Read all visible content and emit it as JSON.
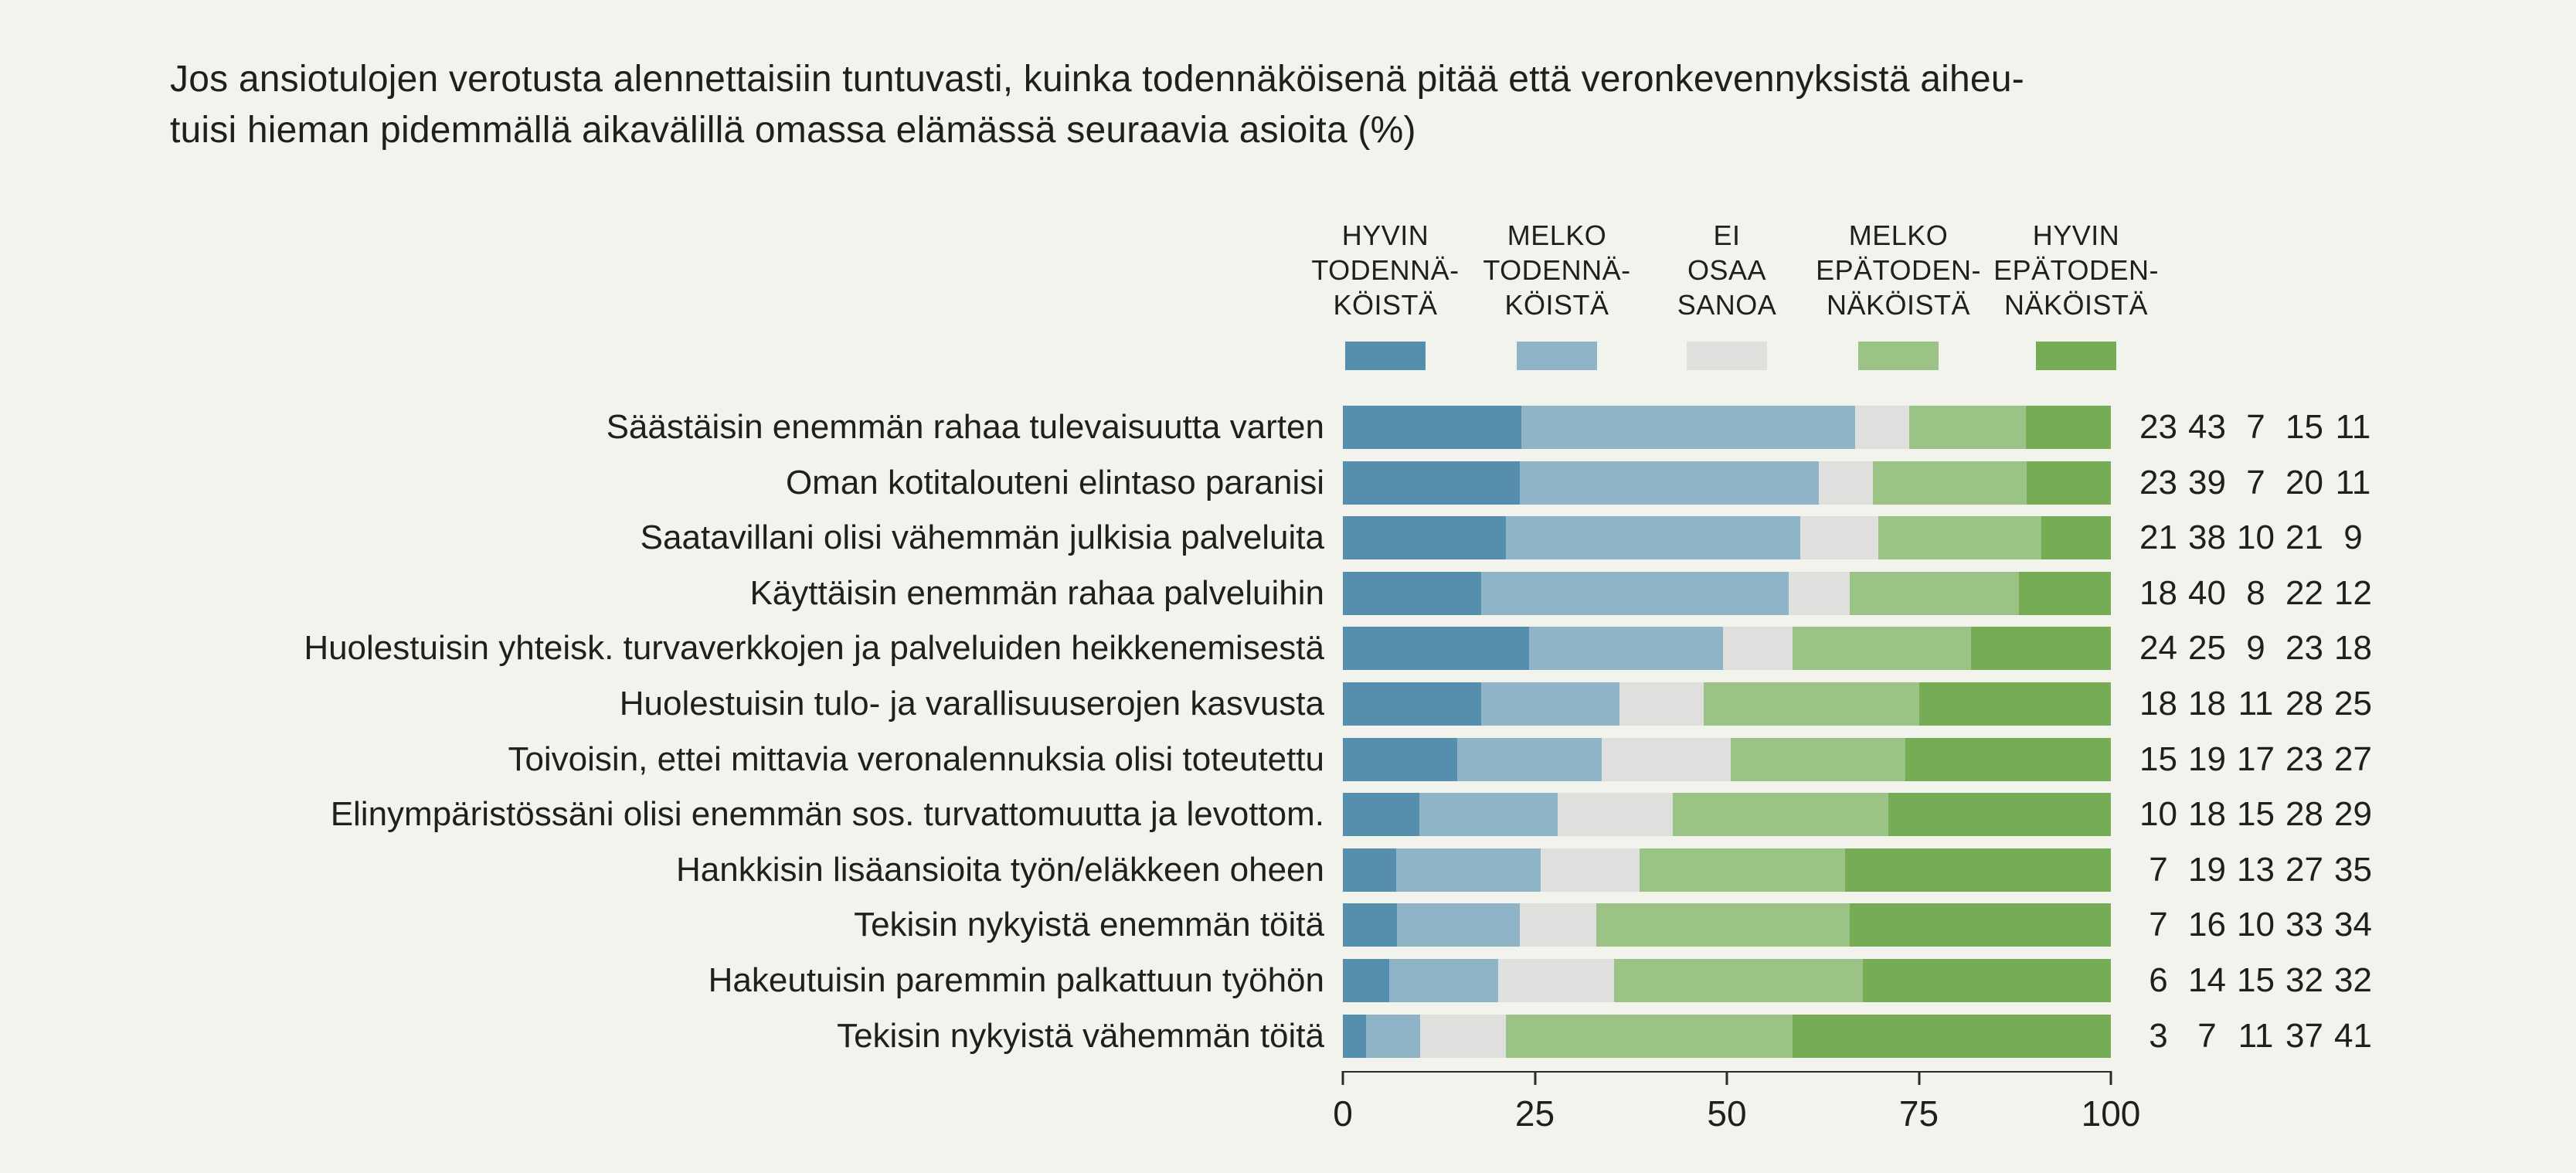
{
  "title": {
    "line1": "Jos ansiotulojen verotusta alennettaisiin tuntuvasti, kuinka todennäköisenä pitää että veronkevennyksistä aiheu-",
    "line2": "tuisi hieman pidemmällä aikavälillä omassa elämässä seuraavia asioita (%)"
  },
  "colors": {
    "background": "#F2F3EC",
    "text": "#1F1F1F",
    "axis": "#2B2B2B",
    "hyvin_todennakoista": "#568FAD",
    "melko_todennakoista": "#90B4C7",
    "ei_osaa_sanoa": "#DFE0DE",
    "melko_epatodennakoista": "#9CC386",
    "hyvin_epatodennakoista": "#76AC55"
  },
  "chart_data": {
    "type": "bar",
    "orientation": "horizontal",
    "stacked": true,
    "unit": "%",
    "title": "Jos ansiotulojen verotusta alennettaisiin tuntuvasti, kuinka todennäköisenä pitää että veronkevennyksistä aiheutuisi hieman pidemmällä aikavälillä omassa elämässä seuraavia asioita (%)",
    "xlim": [
      0,
      100
    ],
    "xticks": [
      "0",
      "25",
      "50",
      "75",
      "100"
    ],
    "grid": false,
    "legend_position": "top",
    "legend": [
      {
        "key": "hyvin-todennakoista",
        "lines": [
          "HYVIN",
          "TODENNÄ-",
          "KÖISTÄ"
        ],
        "color": "#568FAD"
      },
      {
        "key": "melko-todennakoista",
        "lines": [
          "MELKO",
          "TODENNÄ-",
          "KÖISTÄ"
        ],
        "color": "#90B4C7"
      },
      {
        "key": "ei-osaa-sanoa",
        "lines": [
          "EI",
          "OSAA",
          "SANOA"
        ],
        "color": "#DFE0DE"
      },
      {
        "key": "melko-epatodennakoista",
        "lines": [
          "MELKO",
          "EPÄTODEN-",
          "NÄKÖISTÄ"
        ],
        "color": "#9CC386"
      },
      {
        "key": "hyvin-epatodennakoista",
        "lines": [
          "HYVIN",
          "EPÄTODEN-",
          "NÄKÖISTÄ"
        ],
        "color": "#76AC55"
      }
    ],
    "categories": [
      "Säästäisin enemmän rahaa tulevaisuutta varten",
      "Oman kotitalouteni elintaso paranisi",
      "Saatavillani olisi vähemmän julkisia palveluita",
      "Käyttäisin enemmän rahaa palveluihin",
      "Huolestuisin yhteisk. turvaverkkojen ja palveluiden heikkenemisestä",
      "Huolestuisin tulo- ja varallisuuserojen kasvusta",
      "Toivoisin, ettei mittavia veronalennuksia olisi toteutettu",
      "Elinympäristössäni olisi enemmän sos. turvattomuutta ja levottom.",
      "Hankkisin lisäansioita työn/eläkkeen oheen",
      "Tekisin nykyistä enemmän töitä",
      "Hakeutuisin paremmin palkattuun työhön",
      "Tekisin nykyistä vähemmän töitä"
    ],
    "series": [
      {
        "key": "hyvin-todennakoista",
        "name": "HYVIN TODENNÄKÖISTÄ",
        "color": "#568FAD",
        "values": [
          23,
          23,
          21,
          18,
          24,
          18,
          15,
          10,
          7,
          7,
          6,
          3
        ]
      },
      {
        "key": "melko-todennakoista",
        "name": "MELKO TODENNÄKÖISTÄ",
        "color": "#90B4C7",
        "values": [
          43,
          39,
          38,
          40,
          25,
          18,
          19,
          18,
          19,
          16,
          14,
          7
        ]
      },
      {
        "key": "ei-osaa-sanoa",
        "name": "EI OSAA SANOA",
        "color": "#DFE0DE",
        "values": [
          7,
          7,
          10,
          8,
          9,
          11,
          17,
          15,
          13,
          10,
          15,
          11
        ]
      },
      {
        "key": "melko-epatodennakoista",
        "name": "MELKO EPÄTODENNÄKÖISTÄ",
        "color": "#9CC386",
        "values": [
          15,
          20,
          21,
          22,
          23,
          28,
          23,
          28,
          27,
          33,
          32,
          37
        ]
      },
      {
        "key": "hyvin-epatodennakoista",
        "name": "HYVIN EPÄTODENNÄKÖISTÄ",
        "color": "#76AC55",
        "values": [
          11,
          11,
          9,
          12,
          18,
          25,
          27,
          29,
          35,
          34,
          32,
          41
        ]
      }
    ]
  }
}
